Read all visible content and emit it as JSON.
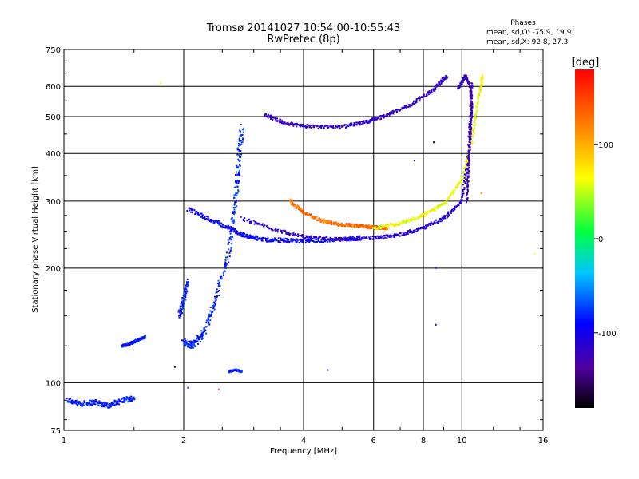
{
  "chart_data": {
    "type": "scatter",
    "title": "Tromsø 20141027 10:54:00-10:55:43",
    "subtitle": "RwPretec (8p)",
    "xlabel": "Frequency [MHz]",
    "ylabel": "Stationary phase Virtual Height [km]",
    "x_scale": "log",
    "y_scale": "log",
    "xlim": [
      1,
      16
    ],
    "ylim": [
      75,
      750
    ],
    "x_ticks": [
      1,
      2,
      4,
      6,
      8,
      10,
      16
    ],
    "x_tick_labels": [
      "1",
      "2",
      "4",
      "6",
      "8",
      "10",
      "16"
    ],
    "y_ticks": [
      75,
      100,
      200,
      300,
      400,
      500,
      600,
      750
    ],
    "y_tick_labels": [
      "75",
      "100",
      "200",
      "300",
      "400",
      "500",
      "600",
      "750"
    ],
    "grid": true,
    "phases_box": {
      "heading": "Phases",
      "line_o": "mean, sd,O: -75.9, 19.9",
      "line_x": "mean, sd,X: 92.8, 27.3"
    },
    "colorbar": {
      "label": "[deg]",
      "range": [
        -180,
        180
      ],
      "ticks": [
        100,
        0,
        -100
      ],
      "tick_labels": [
        "100",
        "0",
        "-100"
      ]
    },
    "traces": [
      {
        "x": [
          1.02,
          1.1,
          1.2,
          1.3,
          1.4,
          1.5
        ],
        "y": [
          90,
          88,
          89,
          87,
          90,
          91
        ],
        "phase": -85,
        "spread": 0.03
      },
      {
        "x": [
          1.4,
          1.45,
          1.5,
          1.55,
          1.6
        ],
        "y": [
          125,
          126,
          128,
          130,
          132
        ],
        "phase": -85,
        "spread": 0.015
      },
      {
        "x": [
          1.95,
          2.0,
          2.05
        ],
        "y": [
          150,
          165,
          185
        ],
        "phase": -85,
        "spread": 0.03
      },
      {
        "x": [
          2.0,
          2.1,
          2.25,
          2.4,
          2.6,
          2.7,
          2.75,
          2.8
        ],
        "y": [
          128,
          125,
          135,
          165,
          220,
          300,
          380,
          470
        ],
        "phase": -80,
        "spread": 0.04
      },
      {
        "x": [
          2.6,
          2.7,
          2.8
        ],
        "y": [
          107,
          108,
          107
        ],
        "phase": -85,
        "spread": 0.01
      },
      {
        "x": [
          2.05,
          2.3,
          2.6,
          2.8,
          3.0,
          3.3,
          3.7,
          4.2,
          5,
          5.6
        ],
        "y": [
          285,
          270,
          255,
          245,
          240,
          237,
          236,
          236,
          238,
          240
        ],
        "phase": -95,
        "spread": 0.025
      },
      {
        "x": [
          2.8,
          3.5,
          4.2,
          5,
          6,
          7,
          8,
          9,
          10,
          10.4,
          10.6
        ],
        "y": [
          270,
          250,
          240,
          238,
          240,
          245,
          255,
          270,
          300,
          400,
          620
        ],
        "phase": -115,
        "spread": 0.02
      },
      {
        "x": [
          3.7,
          4,
          4.5,
          5,
          5.5,
          6,
          6.5
        ],
        "y": [
          300,
          280,
          265,
          260,
          258,
          256,
          255
        ],
        "phase": 130,
        "spread": 0.02
      },
      {
        "x": [
          6,
          7,
          8,
          9,
          10,
          10.6,
          11,
          11.3
        ],
        "y": [
          255,
          262,
          275,
          295,
          340,
          430,
          560,
          640
        ],
        "phase": 65,
        "spread": 0.02
      },
      {
        "x": [
          3.2,
          3.6,
          4.2,
          5,
          5.8,
          6.5,
          7.5,
          8.5,
          9.2
        ],
        "y": [
          505,
          480,
          470,
          470,
          485,
          505,
          540,
          590,
          640
        ],
        "phase": -120,
        "spread": 0.02
      },
      {
        "x": [
          10.3,
          10.4,
          10.5,
          10.6,
          10.5,
          10.2,
          9.8
        ],
        "y": [
          300,
          380,
          450,
          530,
          600,
          640,
          590
        ],
        "phase": -125,
        "spread": 0.015
      }
    ],
    "isolated_points": [
      {
        "x": 1.75,
        "y": 612,
        "phase": 60
      },
      {
        "x": 2.05,
        "y": 97,
        "phase": -70
      },
      {
        "x": 2.45,
        "y": 96,
        "phase": 140
      },
      {
        "x": 1.9,
        "y": 110,
        "phase": -160
      },
      {
        "x": 4.6,
        "y": 108,
        "phase": -120
      },
      {
        "x": 8.5,
        "y": 428,
        "phase": -170
      },
      {
        "x": 8.6,
        "y": 200,
        "phase": -80
      },
      {
        "x": 8.6,
        "y": 142,
        "phase": -90
      },
      {
        "x": 7.6,
        "y": 383,
        "phase": -120
      },
      {
        "x": 11.2,
        "y": 315,
        "phase": 120
      },
      {
        "x": 15.2,
        "y": 218,
        "phase": 60
      }
    ]
  }
}
